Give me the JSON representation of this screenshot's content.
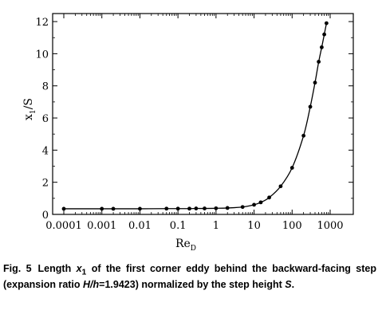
{
  "chart_data": {
    "type": "line",
    "x_scale": "log",
    "xlim": [
      0.0001,
      1000
    ],
    "ylim": [
      0,
      12.5
    ],
    "x_ticks": [
      0.0001,
      0.001,
      0.01,
      0.1,
      1,
      10,
      100,
      1000
    ],
    "x_tick_labels": [
      "0.0001",
      "0.001",
      "0.01",
      "0.1",
      "1",
      "10",
      "100",
      "1000"
    ],
    "y_ticks": [
      0,
      2,
      4,
      6,
      8,
      10,
      12
    ],
    "y_tick_labels": [
      "0",
      "2",
      "4",
      "6",
      "8",
      "10",
      "12"
    ],
    "xlabel_main": "Re",
    "xlabel_sub": "D",
    "ylabel_main": "x",
    "ylabel_sub": "1",
    "ylabel_rest": "/S",
    "series": [
      {
        "name": "x1/S",
        "x": [
          0.0001,
          0.001,
          0.002,
          0.01,
          0.05,
          0.1,
          0.2,
          0.3,
          0.5,
          1,
          2,
          5,
          10,
          15,
          25,
          50,
          100,
          200,
          300,
          400,
          500,
          600,
          700,
          800
        ],
        "y": [
          0.35,
          0.35,
          0.35,
          0.35,
          0.36,
          0.36,
          0.36,
          0.37,
          0.37,
          0.38,
          0.4,
          0.46,
          0.6,
          0.75,
          1.05,
          1.75,
          2.9,
          4.9,
          6.7,
          8.2,
          9.5,
          10.4,
          11.2,
          11.9
        ]
      }
    ]
  },
  "caption": {
    "fig_label": "Fig. 5",
    "text_1": "Length ",
    "x_var": "x",
    "x_sub": "1",
    "text_2": " of the first corner eddy behind the backward-facing step (expansion ratio ",
    "ratio_expr": "H/h",
    "text_3": "=1.9423) normalized by the step height ",
    "s_var": "S",
    "text_4": "."
  }
}
